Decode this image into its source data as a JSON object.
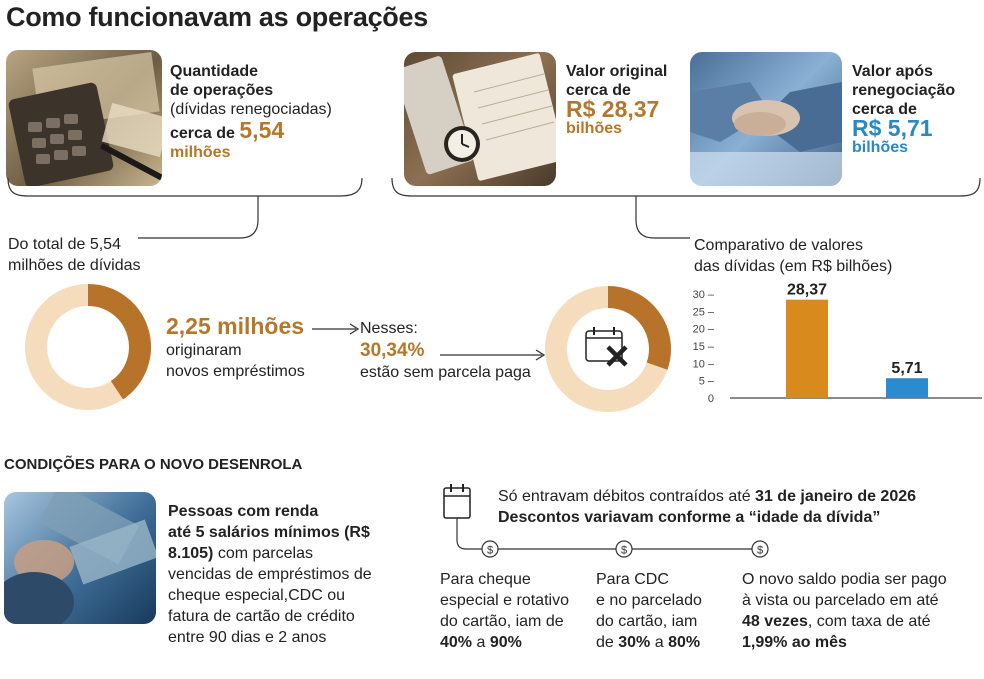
{
  "title": "Como funcionavam as operações",
  "card1": {
    "line1": "Quantidade",
    "line2": "de operações",
    "line3": "(dívidas renegociadas)",
    "prefix": "cerca de",
    "value": "5,54",
    "unit": "milhões"
  },
  "card2": {
    "line1": "Valor original",
    "line2": "cerca de",
    "value": "R$ 28,37",
    "unit": "bilhões"
  },
  "card3": {
    "line1": "Valor após",
    "line2": "renegociação",
    "line3": "cerca de",
    "value": "R$ 5,71",
    "unit": "bilhões"
  },
  "donut1": {
    "caption_line1": "Do total de 5,54",
    "caption_line2": "milhões de dívidas",
    "value": "2,25 milhões",
    "desc_line1": "originaram",
    "desc_line2": "novos empréstimos",
    "fraction": 0.406
  },
  "donut2": {
    "intro": "Nesses:",
    "value": "30,34%",
    "desc": "estão sem parcela paga",
    "fraction": 0.3034
  },
  "chart_caption": {
    "line1": "Comparativo de valores",
    "line2": "das dívidas (em R$ bilhões)"
  },
  "chart_data": {
    "type": "bar",
    "categories": [
      "Valor original",
      "Valor após renegociação"
    ],
    "values": [
      28.37,
      5.71
    ],
    "value_labels": [
      "28,37",
      "5,71"
    ],
    "colors": [
      "#d88a1c",
      "#2a8bd0"
    ],
    "ylim": [
      0,
      30
    ],
    "yticks": [
      0,
      5,
      10,
      15,
      20,
      25,
      30
    ],
    "ytick_labels": [
      "0",
      "5 –",
      "10 –",
      "15 –",
      "20 –",
      "25 –",
      "30 –"
    ],
    "title": "Comparativo de valores das dívidas (em R$ bilhões)",
    "xlabel": "",
    "ylabel": "",
    "grid": false
  },
  "section_title": "CONDIÇÕES PARA O NOVO DESENROLA",
  "conditions": {
    "l1": "Pessoas com renda",
    "l2": "até 5 salários mínimos (R$",
    "l3b": "8.105)",
    "l3n": " com parcelas",
    "l4": "vencidas de empréstimos de",
    "l5": "cheque especial,CDC ou",
    "l6": "fatura de cartão de crédito",
    "l7": "entre 90 dias e 2 anos"
  },
  "timeline": {
    "header_prefix": "Só entravam débitos contraídos até ",
    "header_date": "31 de janeiro de 2026",
    "subheader": "Descontos variavam conforme a “idade da dívida”",
    "col1": {
      "l1": "Para cheque",
      "l2": "especial e rotativo",
      "l3": "do cartão, iam de",
      "p1": "40%",
      "mid": " a ",
      "p2": "90%"
    },
    "col2": {
      "l1": "Para CDC",
      "l2": "e no parcelado",
      "l3": "do cartão, iam",
      "pre": "de ",
      "p1": "30%",
      "mid": " a ",
      "p2": "80%"
    },
    "col3": {
      "l1": "O novo saldo podia ser pago",
      "l2": "à vista ou parcelado em até",
      "l3b": "48 vezes",
      "l3n": ", com taxa de até",
      "l4b": "1,99% ao mês"
    }
  },
  "colors": {
    "gold": "#b5772a",
    "donut_light": "#f4dcbd",
    "donut_dark": "#b8732b",
    "blue_text": "#2a88c5",
    "bar_orange": "#d88a1c",
    "bar_blue": "#2a8bd0"
  },
  "icons": [
    "calculator-photo",
    "calendar-clock-photo",
    "handshake-photo",
    "money-photo",
    "calendar-x-icon",
    "dollar-coin-icon",
    "calendar-icon",
    "arrow-right-icon"
  ]
}
